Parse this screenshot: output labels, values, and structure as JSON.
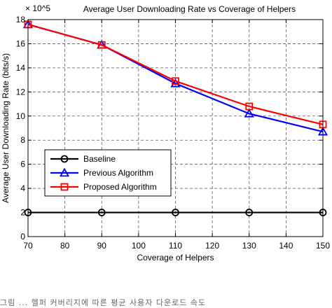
{
  "chart_data": {
    "type": "line",
    "title": "Average User Downloading Rate vs Coverage of Helpers",
    "xlabel": "Coverage of Helpers",
    "ylabel": "Average User Downloading Rate (bits/s)",
    "y_exponent_label": "× 10^5",
    "x": [
      70,
      90,
      110,
      130,
      150
    ],
    "xlim": [
      70,
      150
    ],
    "ylim": [
      0,
      18
    ],
    "x_ticks": [
      "70",
      "80",
      "90",
      "100",
      "110",
      "120",
      "130",
      "140",
      "150"
    ],
    "y_ticks": [
      "0",
      "2",
      "4",
      "6",
      "8",
      "10",
      "12",
      "14",
      "16",
      "18"
    ],
    "grid": true,
    "legend_position": "center-left",
    "series": [
      {
        "name": "Baseline",
        "values": [
          2.0,
          2.0,
          2.0,
          2.0,
          2.0
        ],
        "color": "#000000",
        "marker": "circle"
      },
      {
        "name": "Previous Algorithm",
        "values": [
          17.6,
          15.9,
          12.7,
          10.2,
          8.7
        ],
        "color": "#0000ff",
        "marker": "triangle"
      },
      {
        "name": "Proposed Algorithm",
        "values": [
          17.6,
          15.9,
          12.9,
          10.8,
          9.3
        ],
        "color": "#ff0000",
        "marker": "square"
      }
    ]
  },
  "caption_text": "그림 ... 헬퍼 커버리지에 따른 평균 사용자 다운로드 속도"
}
